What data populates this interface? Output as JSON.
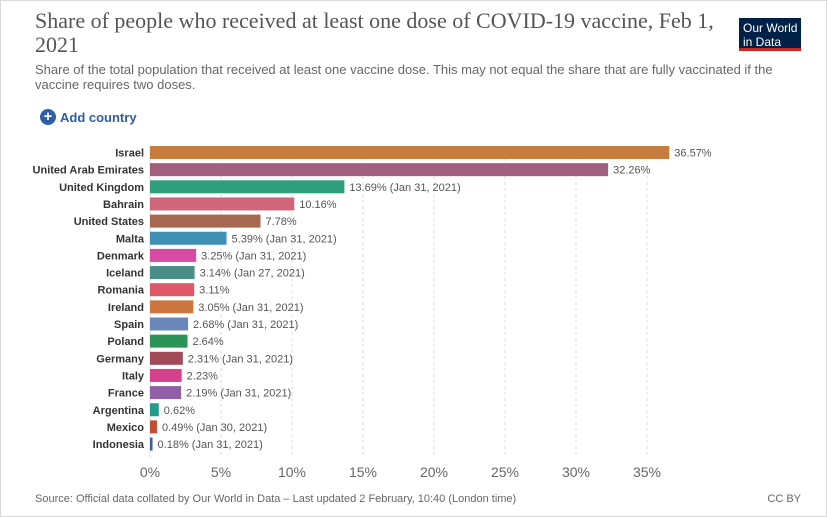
{
  "header": {
    "title": "Share of people who received at least one dose of COVID-19 vaccine, Feb 1, 2021",
    "subtitle": "Share of the total population that received at least one vaccine dose. This may not equal the share that are fully vaccinated if the vaccine requires two doses.",
    "logo_line1": "Our World",
    "logo_line2": "in Data"
  },
  "controls": {
    "add_country_label": "Add country"
  },
  "footer": {
    "source": "Source: Official data collated by Our World in Data – Last updated 2 February, 10:40 (London time)",
    "license": "CC BY"
  },
  "chart_data": {
    "type": "bar",
    "orientation": "horizontal",
    "xlim": [
      0,
      37
    ],
    "x_ticks": [
      0,
      5,
      10,
      15,
      20,
      25,
      30,
      35
    ],
    "x_tick_labels": [
      "0%",
      "5%",
      "10%",
      "15%",
      "20%",
      "25%",
      "30%",
      "35%"
    ],
    "grid": "vertical dashed",
    "categories": [
      "Israel",
      "United Arab Emirates",
      "United Kingdom",
      "Bahrain",
      "United States",
      "Malta",
      "Denmark",
      "Iceland",
      "Romania",
      "Ireland",
      "Spain",
      "Poland",
      "Germany",
      "Italy",
      "France",
      "Argentina",
      "Mexico",
      "Indonesia"
    ],
    "values": [
      36.57,
      32.26,
      13.69,
      10.16,
      7.78,
      5.39,
      3.25,
      3.14,
      3.11,
      3.05,
      2.68,
      2.64,
      2.31,
      2.23,
      2.19,
      0.62,
      0.49,
      0.18
    ],
    "value_labels": [
      "36.57%",
      "32.26%",
      "13.69% (Jan 31, 2021)",
      "10.16%",
      "7.78%",
      "5.39% (Jan 31, 2021)",
      "3.25% (Jan 31, 2021)",
      "3.14% (Jan 27, 2021)",
      "3.11%",
      "3.05% (Jan 31, 2021)",
      "2.68% (Jan 31, 2021)",
      "2.64%",
      "2.31% (Jan 31, 2021)",
      "2.23%",
      "2.19% (Jan 31, 2021)",
      "0.62%",
      "0.49% (Jan 30, 2021)",
      "0.18% (Jan 31, 2021)"
    ],
    "colors": [
      "#c57c3d",
      "#a2607f",
      "#2f9e7b",
      "#d0667a",
      "#a6684f",
      "#3e90b4",
      "#d94ba2",
      "#4a8e87",
      "#e0576a",
      "#cd753f",
      "#6b86b9",
      "#2a9459",
      "#a04b57",
      "#d6418d",
      "#8f60a8",
      "#239c8c",
      "#c44e33",
      "#3f5f95"
    ]
  }
}
